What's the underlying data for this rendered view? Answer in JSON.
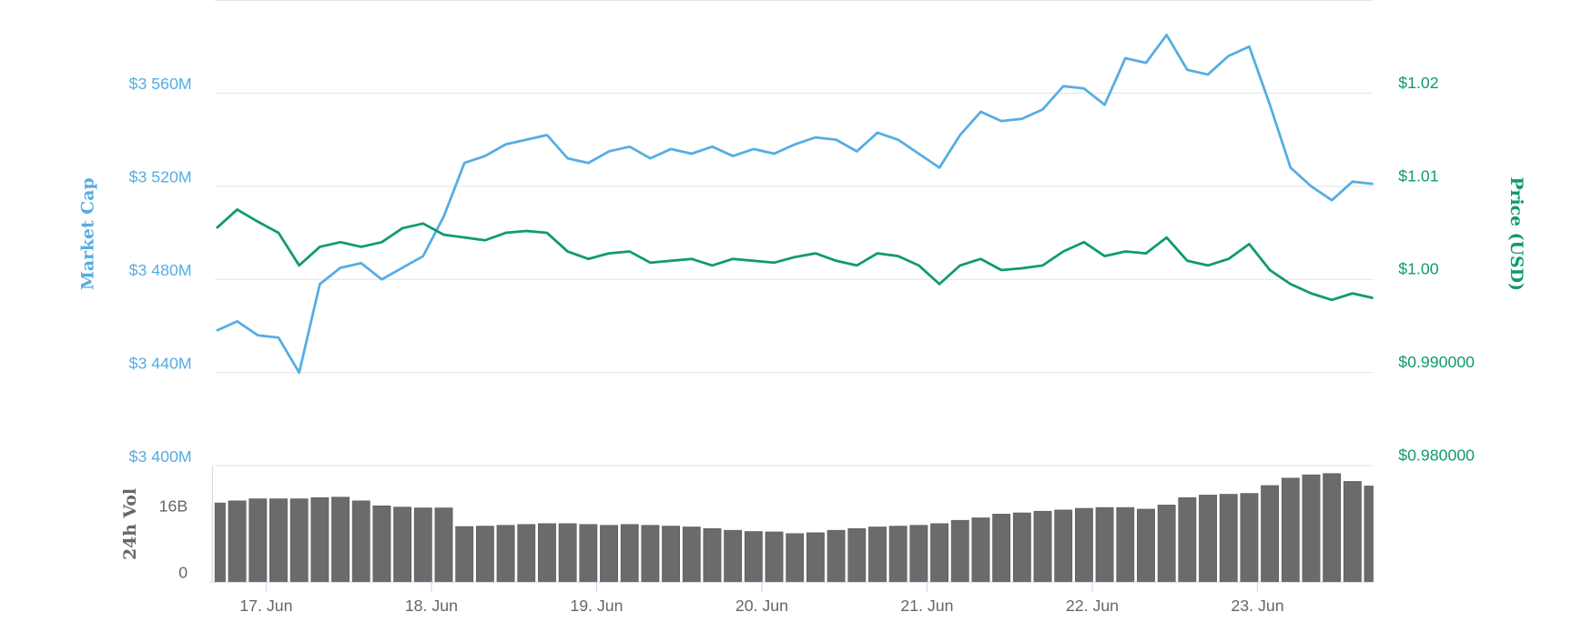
{
  "chart_data": [
    {
      "type": "line",
      "ylabel": "Market Cap",
      "y2label": "Price (USD)",
      "xlim": [
        16.69,
        23.7
      ],
      "x": [
        16.7,
        16.825,
        16.95,
        17.075,
        17.2,
        17.325,
        17.45,
        17.575,
        17.7,
        17.825,
        17.95,
        18.075,
        18.2,
        18.325,
        18.45,
        18.575,
        18.7,
        18.825,
        18.95,
        19.075,
        19.2,
        19.325,
        19.45,
        19.575,
        19.7,
        19.825,
        19.95,
        20.075,
        20.2,
        20.325,
        20.45,
        20.575,
        20.7,
        20.825,
        20.95,
        21.075,
        21.2,
        21.325,
        21.45,
        21.575,
        21.7,
        21.825,
        21.95,
        22.075,
        22.2,
        22.325,
        22.45,
        22.575,
        22.7,
        22.825,
        22.95,
        23.075,
        23.2,
        23.325,
        23.45,
        23.575,
        23.7
      ],
      "series": [
        {
          "color": "#56ade3",
          "axis": "y",
          "values": [
            3458,
            3462,
            3456,
            3455,
            3440,
            3478,
            3485,
            3487,
            3480,
            3485,
            3490,
            3507,
            3530,
            3533,
            3538,
            3540,
            3542,
            3532,
            3530,
            3535,
            3537,
            3532,
            3536,
            3534,
            3537,
            3533,
            3536,
            3534,
            3538,
            3541,
            3540,
            3535,
            3543,
            3540,
            3534,
            3528,
            3542,
            3552,
            3548,
            3549,
            3553,
            3563,
            3562,
            3555,
            3575,
            3573,
            3585,
            3570,
            3568,
            3576,
            3580,
            3555,
            3528,
            3520,
            3514,
            3522,
            3521
          ]
        },
        {
          "color": "#0f9b6a",
          "axis": "y2",
          "values": [
            1.0045,
            1.0065,
            1.0052,
            1.004,
            1.0005,
            1.0025,
            1.003,
            1.0025,
            1.003,
            1.0045,
            1.005,
            1.0038,
            1.0035,
            1.0032,
            1.004,
            1.0042,
            1.004,
            1.002,
            1.0012,
            1.0018,
            1.002,
            1.0008,
            1.001,
            1.0012,
            1.0005,
            1.0012,
            1.001,
            1.0008,
            1.0014,
            1.0018,
            1.001,
            1.0005,
            1.0018,
            1.0015,
            1.0005,
            0.9985,
            1.0005,
            1.0012,
            1.0,
            1.0002,
            1.0005,
            1.002,
            1.003,
            1.0015,
            1.002,
            1.0018,
            1.0035,
            1.001,
            1.0005,
            1.0012,
            1.0028,
            1.0,
            0.9985,
            0.9975,
            0.9968,
            0.9975,
            0.997
          ]
        }
      ],
      "ylim": [
        3400,
        3600
      ],
      "yticks": [
        {
          "value": 3400,
          "label": "$3 400M"
        },
        {
          "value": 3440,
          "label": "$3 440M"
        },
        {
          "value": 3480,
          "label": "$3 480M"
        },
        {
          "value": 3520,
          "label": "$3 520M"
        },
        {
          "value": 3560,
          "label": "$3 560M"
        }
      ],
      "y2lim": [
        0.979,
        1.029
      ],
      "y2ticks": [
        {
          "value": 0.98,
          "label": "$0.980000"
        },
        {
          "value": 0.99,
          "label": "$0.990000"
        },
        {
          "value": 1.0,
          "label": "$1.00"
        },
        {
          "value": 1.01,
          "label": "$1.01"
        },
        {
          "value": 1.02,
          "label": "$1.02"
        }
      ],
      "grid": true
    },
    {
      "type": "bar",
      "ylabel": "24h Vol",
      "color": "#6b6b6b",
      "xlim": [
        16.69,
        23.7
      ],
      "x": [
        16.7,
        16.825,
        16.95,
        17.075,
        17.2,
        17.325,
        17.45,
        17.575,
        17.7,
        17.825,
        17.95,
        18.075,
        18.2,
        18.325,
        18.45,
        18.575,
        18.7,
        18.825,
        18.95,
        19.075,
        19.2,
        19.325,
        19.45,
        19.575,
        19.7,
        19.825,
        19.95,
        20.075,
        20.2,
        20.325,
        20.45,
        20.575,
        20.7,
        20.825,
        20.95,
        21.075,
        21.2,
        21.325,
        21.45,
        21.575,
        21.7,
        21.825,
        21.95,
        22.075,
        22.2,
        22.325,
        22.45,
        22.575,
        22.7,
        22.825,
        22.95,
        23.075,
        23.2,
        23.325,
        23.45,
        23.575,
        23.7
      ],
      "values": [
        19,
        19.5,
        20,
        20,
        20,
        20.3,
        20.4,
        19.5,
        18.3,
        18,
        17.8,
        17.8,
        13.3,
        13.4,
        13.6,
        13.8,
        14,
        14,
        13.8,
        13.6,
        13.8,
        13.6,
        13.4,
        13.2,
        12.8,
        12.4,
        12.1,
        12,
        11.6,
        11.8,
        12.4,
        12.8,
        13.2,
        13.4,
        13.6,
        14,
        14.8,
        15.4,
        16.3,
        16.6,
        17,
        17.3,
        17.7,
        17.9,
        17.9,
        17.5,
        18.5,
        20.3,
        20.9,
        21.1,
        21.3,
        23.2,
        25,
        25.8,
        26.1,
        24.2,
        23.1
      ],
      "ylim": [
        0,
        28
      ],
      "yticks": [
        0,
        {
          "value": 16,
          "label": "16B"
        }
      ],
      "xticks": [
        {
          "value": 17,
          "label": "17. Jun"
        },
        {
          "value": 18,
          "label": "18. Jun"
        },
        {
          "value": 19,
          "label": "19. Jun"
        },
        {
          "value": 20,
          "label": "20. Jun"
        },
        {
          "value": 21,
          "label": "21. Jun"
        },
        {
          "value": 22,
          "label": "22. Jun"
        },
        {
          "value": 23,
          "label": "23. Jun"
        }
      ]
    }
  ]
}
